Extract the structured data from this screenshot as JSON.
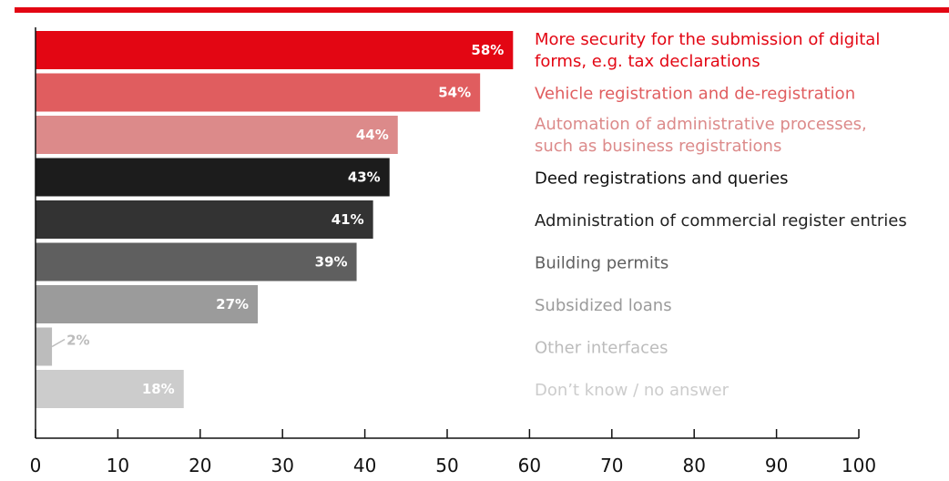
{
  "chart_data": {
    "type": "bar",
    "orientation": "horizontal",
    "categories": [
      [
        "More security for the submission of digital",
        "forms, e.g. tax declarations"
      ],
      [
        "Vehicle registration and de-registration"
      ],
      [
        "Automation of administrative processes,",
        "such as business registrations"
      ],
      [
        "Deed registrations and queries"
      ],
      [
        "Administration of commercial register entries"
      ],
      [
        "Building permits"
      ],
      [
        "Subsidized loans"
      ],
      [
        "Other interfaces"
      ],
      [
        "Don’t know / no answer"
      ]
    ],
    "values": [
      58,
      54,
      44,
      43,
      41,
      39,
      27,
      2,
      18
    ],
    "value_labels": [
      "58%",
      "54%",
      "44%",
      "43%",
      "41%",
      "39%",
      "27%",
      "2%",
      "18%"
    ],
    "bar_colors": [
      "#e30613",
      "#e05d5f",
      "#dc8a8a",
      "#1c1c1c",
      "#333333",
      "#5f5f5f",
      "#9b9b9b",
      "#bcbcbc",
      "#cccccc"
    ],
    "label_colors": [
      "#e30613",
      "#e05d5f",
      "#dc8a8a",
      "#111111",
      "#222222",
      "#5f5f5f",
      "#9b9b9b",
      "#bcbcbc",
      "#cccccc"
    ],
    "value_label_colors": [
      "#ffffff",
      "#ffffff",
      "#ffffff",
      "#ffffff",
      "#ffffff",
      "#ffffff",
      "#ffffff",
      "#bcbcbc",
      "#ffffff"
    ],
    "xlim": [
      0,
      100
    ],
    "xticks": [
      0,
      10,
      20,
      30,
      40,
      50,
      60,
      70,
      80,
      90,
      100
    ],
    "grid": false,
    "accent_color": "#e30613"
  }
}
